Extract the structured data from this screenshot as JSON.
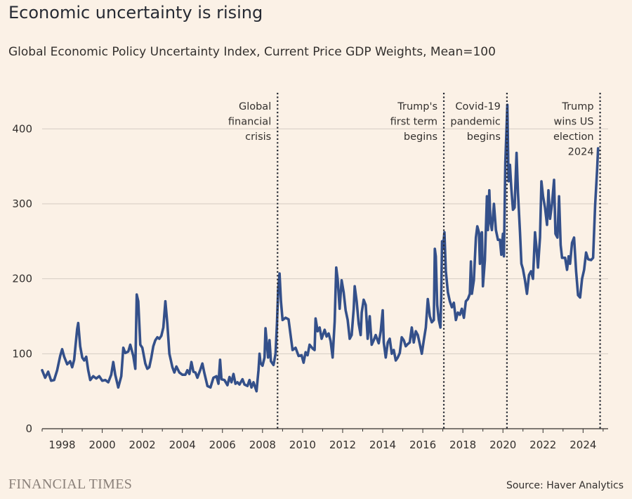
{
  "title": "Economic uncertainty is rising",
  "subtitle": "Global Economic Policy Uncertainty Index, Current Price GDP Weights, Mean=100",
  "brand": "FINANCIAL TIMES",
  "source": "Source: Haver Analytics",
  "colors": {
    "background": "#fbf1e6",
    "line": "#34508a",
    "grid": "#d5ccc3",
    "annotation": "#262a33"
  },
  "chart_data": {
    "type": "line",
    "title": "Global Economic Policy Uncertainty Index, Current Price GDP Weights, Mean=100",
    "xlabel": "",
    "ylabel": "",
    "xlim": [
      1997.0,
      2025.25
    ],
    "ylim": [
      0,
      450
    ],
    "grid": true,
    "x_ticks": [
      1998,
      2000,
      2002,
      2004,
      2006,
      2008,
      2010,
      2012,
      2014,
      2016,
      2018,
      2020,
      2022,
      2024
    ],
    "x_tick_labels": [
      "1998",
      "2000",
      "2002",
      "2004",
      "2006",
      "2008",
      "2010",
      "2012",
      "2014",
      "2016",
      "2018",
      "2020",
      "2022",
      "2024"
    ],
    "y_ticks": [
      0,
      100,
      200,
      300,
      400
    ],
    "y_tick_labels": [
      "0",
      "100",
      "200",
      "300",
      "400"
    ],
    "annotations": [
      {
        "x": 2008.75,
        "lines": [
          "Global",
          "financial",
          "crisis"
        ]
      },
      {
        "x": 2017.05,
        "lines": [
          "Trump's",
          "first term",
          "begins"
        ]
      },
      {
        "x": 2020.2,
        "lines": [
          "Covid-19",
          "pandemic",
          "begins"
        ]
      },
      {
        "x": 2024.85,
        "lines": [
          "Trump",
          "wins US",
          "election",
          "2024"
        ]
      }
    ],
    "series": [
      {
        "values": [
          [
            1997.0,
            78
          ],
          [
            1997.15,
            68
          ],
          [
            1997.3,
            76
          ],
          [
            1997.45,
            64
          ],
          [
            1997.6,
            65
          ],
          [
            1997.75,
            78
          ],
          [
            1997.9,
            97
          ],
          [
            1998.0,
            106
          ],
          [
            1998.1,
            96
          ],
          [
            1998.25,
            86
          ],
          [
            1998.4,
            90
          ],
          [
            1998.5,
            82
          ],
          [
            1998.6,
            92
          ],
          [
            1998.7,
            120
          ],
          [
            1998.75,
            133
          ],
          [
            1998.8,
            141
          ],
          [
            1998.9,
            110
          ],
          [
            1999.0,
            95
          ],
          [
            1999.1,
            91
          ],
          [
            1999.2,
            96
          ],
          [
            1999.3,
            78
          ],
          [
            1999.4,
            65
          ],
          [
            1999.55,
            70
          ],
          [
            1999.7,
            67
          ],
          [
            1999.85,
            70
          ],
          [
            2000.0,
            64
          ],
          [
            2000.15,
            65
          ],
          [
            2000.3,
            62
          ],
          [
            2000.45,
            72
          ],
          [
            2000.55,
            89
          ],
          [
            2000.65,
            72
          ],
          [
            2000.8,
            55
          ],
          [
            2000.95,
            70
          ],
          [
            2001.05,
            108
          ],
          [
            2001.15,
            101
          ],
          [
            2001.3,
            103
          ],
          [
            2001.4,
            112
          ],
          [
            2001.55,
            97
          ],
          [
            2001.65,
            80
          ],
          [
            2001.72,
            179
          ],
          [
            2001.8,
            170
          ],
          [
            2001.9,
            112
          ],
          [
            2002.0,
            108
          ],
          [
            2002.15,
            87
          ],
          [
            2002.25,
            80
          ],
          [
            2002.35,
            82
          ],
          [
            2002.45,
            95
          ],
          [
            2002.55,
            110
          ],
          [
            2002.65,
            118
          ],
          [
            2002.75,
            122
          ],
          [
            2002.85,
            120
          ],
          [
            2002.95,
            124
          ],
          [
            2003.05,
            135
          ],
          [
            2003.15,
            170
          ],
          [
            2003.25,
            140
          ],
          [
            2003.35,
            100
          ],
          [
            2003.5,
            82
          ],
          [
            2003.6,
            75
          ],
          [
            2003.7,
            83
          ],
          [
            2003.85,
            75
          ],
          [
            2004.0,
            72
          ],
          [
            2004.15,
            72
          ],
          [
            2004.25,
            78
          ],
          [
            2004.35,
            73
          ],
          [
            2004.45,
            89
          ],
          [
            2004.55,
            76
          ],
          [
            2004.65,
            75
          ],
          [
            2004.75,
            68
          ],
          [
            2004.9,
            79
          ],
          [
            2005.0,
            87
          ],
          [
            2005.1,
            74
          ],
          [
            2005.25,
            57
          ],
          [
            2005.4,
            55
          ],
          [
            2005.55,
            68
          ],
          [
            2005.7,
            70
          ],
          [
            2005.8,
            60
          ],
          [
            2005.88,
            92
          ],
          [
            2005.95,
            66
          ],
          [
            2006.1,
            65
          ],
          [
            2006.25,
            58
          ],
          [
            2006.35,
            69
          ],
          [
            2006.45,
            62
          ],
          [
            2006.55,
            73
          ],
          [
            2006.65,
            60
          ],
          [
            2006.75,
            62
          ],
          [
            2006.85,
            59
          ],
          [
            2007.0,
            66
          ],
          [
            2007.1,
            59
          ],
          [
            2007.25,
            57
          ],
          [
            2007.35,
            65
          ],
          [
            2007.45,
            55
          ],
          [
            2007.55,
            62
          ],
          [
            2007.7,
            50
          ],
          [
            2007.8,
            78
          ],
          [
            2007.85,
            100
          ],
          [
            2007.9,
            88
          ],
          [
            2008.0,
            84
          ],
          [
            2008.1,
            95
          ],
          [
            2008.15,
            134
          ],
          [
            2008.22,
            112
          ],
          [
            2008.28,
            95
          ],
          [
            2008.35,
            118
          ],
          [
            2008.42,
            90
          ],
          [
            2008.55,
            85
          ],
          [
            2008.65,
            100
          ],
          [
            2008.72,
            140
          ],
          [
            2008.78,
            185
          ],
          [
            2008.85,
            207
          ],
          [
            2008.92,
            170
          ],
          [
            2009.0,
            145
          ],
          [
            2009.15,
            148
          ],
          [
            2009.3,
            146
          ],
          [
            2009.4,
            125
          ],
          [
            2009.5,
            105
          ],
          [
            2009.65,
            108
          ],
          [
            2009.8,
            97
          ],
          [
            2009.95,
            98
          ],
          [
            2010.05,
            88
          ],
          [
            2010.15,
            102
          ],
          [
            2010.25,
            98
          ],
          [
            2010.35,
            112
          ],
          [
            2010.5,
            107
          ],
          [
            2010.6,
            105
          ],
          [
            2010.65,
            147
          ],
          [
            2010.75,
            130
          ],
          [
            2010.85,
            135
          ],
          [
            2010.95,
            120
          ],
          [
            2011.1,
            132
          ],
          [
            2011.2,
            123
          ],
          [
            2011.3,
            127
          ],
          [
            2011.4,
            117
          ],
          [
            2011.5,
            95
          ],
          [
            2011.6,
            143
          ],
          [
            2011.68,
            215
          ],
          [
            2011.75,
            200
          ],
          [
            2011.85,
            160
          ],
          [
            2011.95,
            198
          ],
          [
            2012.05,
            182
          ],
          [
            2012.15,
            158
          ],
          [
            2012.25,
            145
          ],
          [
            2012.35,
            120
          ],
          [
            2012.45,
            125
          ],
          [
            2012.55,
            160
          ],
          [
            2012.6,
            190
          ],
          [
            2012.7,
            170
          ],
          [
            2012.8,
            140
          ],
          [
            2012.9,
            125
          ],
          [
            2012.95,
            155
          ],
          [
            2013.05,
            172
          ],
          [
            2013.15,
            165
          ],
          [
            2013.25,
            120
          ],
          [
            2013.35,
            150
          ],
          [
            2013.45,
            112
          ],
          [
            2013.55,
            118
          ],
          [
            2013.65,
            125
          ],
          [
            2013.8,
            114
          ],
          [
            2013.9,
            130
          ],
          [
            2014.0,
            158
          ],
          [
            2014.05,
            115
          ],
          [
            2014.15,
            95
          ],
          [
            2014.25,
            115
          ],
          [
            2014.35,
            120
          ],
          [
            2014.45,
            100
          ],
          [
            2014.55,
            105
          ],
          [
            2014.65,
            91
          ],
          [
            2014.75,
            95
          ],
          [
            2014.85,
            101
          ],
          [
            2014.95,
            122
          ],
          [
            2015.05,
            118
          ],
          [
            2015.15,
            110
          ],
          [
            2015.25,
            113
          ],
          [
            2015.35,
            115
          ],
          [
            2015.45,
            135
          ],
          [
            2015.55,
            115
          ],
          [
            2015.65,
            130
          ],
          [
            2015.75,
            125
          ],
          [
            2015.85,
            113
          ],
          [
            2015.95,
            100
          ],
          [
            2016.05,
            118
          ],
          [
            2016.15,
            135
          ],
          [
            2016.25,
            173
          ],
          [
            2016.35,
            150
          ],
          [
            2016.45,
            142
          ],
          [
            2016.55,
            145
          ],
          [
            2016.6,
            240
          ],
          [
            2016.65,
            230
          ],
          [
            2016.72,
            165
          ],
          [
            2016.8,
            145
          ],
          [
            2016.88,
            135
          ],
          [
            2016.92,
            175
          ],
          [
            2016.96,
            250
          ],
          [
            2017.0,
            240
          ],
          [
            2017.08,
            262
          ],
          [
            2017.15,
            210
          ],
          [
            2017.25,
            182
          ],
          [
            2017.35,
            170
          ],
          [
            2017.45,
            162
          ],
          [
            2017.55,
            168
          ],
          [
            2017.65,
            145
          ],
          [
            2017.75,
            155
          ],
          [
            2017.85,
            152
          ],
          [
            2017.95,
            160
          ],
          [
            2018.05,
            148
          ],
          [
            2018.15,
            170
          ],
          [
            2018.25,
            173
          ],
          [
            2018.35,
            180
          ],
          [
            2018.4,
            223
          ],
          [
            2018.45,
            180
          ],
          [
            2018.55,
            198
          ],
          [
            2018.65,
            255
          ],
          [
            2018.72,
            270
          ],
          [
            2018.8,
            262
          ],
          [
            2018.85,
            220
          ],
          [
            2018.9,
            258
          ],
          [
            2018.95,
            262
          ],
          [
            2019.0,
            190
          ],
          [
            2019.1,
            225
          ],
          [
            2019.2,
            310
          ],
          [
            2019.25,
            265
          ],
          [
            2019.32,
            318
          ],
          [
            2019.38,
            275
          ],
          [
            2019.45,
            265
          ],
          [
            2019.55,
            300
          ],
          [
            2019.65,
            265
          ],
          [
            2019.75,
            252
          ],
          [
            2019.85,
            252
          ],
          [
            2019.92,
            232
          ],
          [
            2020.0,
            260
          ],
          [
            2020.05,
            230
          ],
          [
            2020.12,
            355
          ],
          [
            2020.18,
            400
          ],
          [
            2020.22,
            432
          ],
          [
            2020.28,
            330
          ],
          [
            2020.35,
            352
          ],
          [
            2020.42,
            320
          ],
          [
            2020.5,
            292
          ],
          [
            2020.58,
            295
          ],
          [
            2020.68,
            368
          ],
          [
            2020.75,
            315
          ],
          [
            2020.85,
            262
          ],
          [
            2020.92,
            220
          ],
          [
            2021.0,
            213
          ],
          [
            2021.1,
            198
          ],
          [
            2021.2,
            180
          ],
          [
            2021.3,
            205
          ],
          [
            2021.4,
            210
          ],
          [
            2021.5,
            200
          ],
          [
            2021.6,
            262
          ],
          [
            2021.68,
            240
          ],
          [
            2021.75,
            215
          ],
          [
            2021.85,
            255
          ],
          [
            2021.92,
            330
          ],
          [
            2022.0,
            310
          ],
          [
            2022.1,
            295
          ],
          [
            2022.2,
            272
          ],
          [
            2022.27,
            318
          ],
          [
            2022.35,
            280
          ],
          [
            2022.45,
            300
          ],
          [
            2022.55,
            332
          ],
          [
            2022.62,
            260
          ],
          [
            2022.72,
            255
          ],
          [
            2022.8,
            310
          ],
          [
            2022.88,
            245
          ],
          [
            2022.95,
            228
          ],
          [
            2023.1,
            228
          ],
          [
            2023.2,
            212
          ],
          [
            2023.28,
            230
          ],
          [
            2023.35,
            220
          ],
          [
            2023.45,
            248
          ],
          [
            2023.55,
            255
          ],
          [
            2023.65,
            210
          ],
          [
            2023.75,
            178
          ],
          [
            2023.85,
            175
          ],
          [
            2023.95,
            200
          ],
          [
            2024.05,
            212
          ],
          [
            2024.15,
            235
          ],
          [
            2024.25,
            226
          ],
          [
            2024.4,
            225
          ],
          [
            2024.5,
            228
          ],
          [
            2024.6,
            298
          ],
          [
            2024.7,
            345
          ],
          [
            2024.75,
            374
          ]
        ]
      }
    ]
  }
}
